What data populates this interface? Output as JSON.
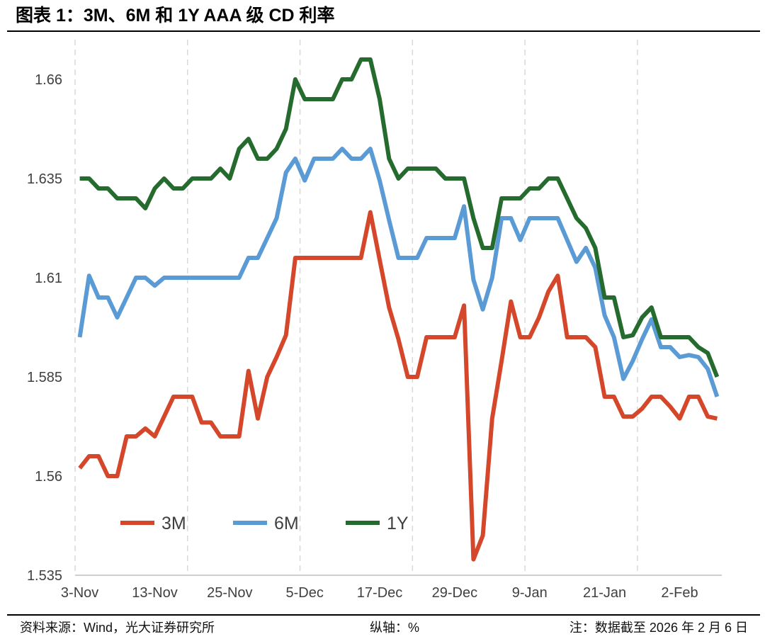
{
  "chart_data": {
    "type": "line",
    "title": "图表 1：3M、6M 和 1Y AAA 级 CD 利率",
    "ylabel": "纵轴：%",
    "source": "资料来源：Wind，光大证券研究所",
    "note": "注：数据截至 2026 年 2 月 6 日",
    "xticks": [
      "3-Nov",
      "13-Nov",
      "25-Nov",
      "5-Dec",
      "17-Dec",
      "29-Dec",
      "9-Jan",
      "21-Jan",
      "2-Feb"
    ],
    "yticks": [
      1.535,
      1.56,
      1.585,
      1.61,
      1.635,
      1.66
    ],
    "ylim": [
      1.535,
      1.67
    ],
    "grid": {
      "vertical": true,
      "horizontal": false
    },
    "legend": "bottom-left",
    "series": [
      {
        "name": "3M",
        "color": "#D4472A",
        "values": [
          1.562,
          1.565,
          1.565,
          1.56,
          1.56,
          1.57,
          1.57,
          1.572,
          1.57,
          1.575,
          1.58,
          1.58,
          1.58,
          1.5735,
          1.5735,
          1.57,
          1.57,
          1.57,
          1.5865,
          1.5745,
          1.585,
          1.59,
          1.5955,
          1.615,
          1.615,
          1.615,
          1.615,
          1.615,
          1.615,
          1.615,
          1.615,
          1.6265,
          1.6145,
          1.6025,
          1.5945,
          1.585,
          1.585,
          1.595,
          1.595,
          1.595,
          1.595,
          1.603,
          1.539,
          1.545,
          1.5745,
          1.589,
          1.604,
          1.595,
          1.595,
          1.6,
          1.6065,
          1.6105,
          1.595,
          1.595,
          1.595,
          1.5925,
          1.58,
          1.58,
          1.575,
          1.575,
          1.577,
          1.58,
          1.58,
          1.5775,
          1.5745,
          1.58,
          1.58,
          1.575,
          1.5745
        ]
      },
      {
        "name": "6M",
        "color": "#5B9BD5",
        "values": [
          1.595,
          1.6105,
          1.605,
          1.605,
          1.6,
          1.605,
          1.61,
          1.61,
          1.608,
          1.61,
          1.61,
          1.61,
          1.61,
          1.61,
          1.61,
          1.61,
          1.61,
          1.61,
          1.615,
          1.615,
          1.62,
          1.625,
          1.6365,
          1.64,
          1.6345,
          1.64,
          1.64,
          1.64,
          1.6425,
          1.64,
          1.64,
          1.6425,
          1.6345,
          1.6245,
          1.615,
          1.615,
          1.615,
          1.62,
          1.62,
          1.62,
          1.62,
          1.628,
          1.6095,
          1.602,
          1.61,
          1.625,
          1.625,
          1.6195,
          1.625,
          1.625,
          1.625,
          1.625,
          1.6195,
          1.614,
          1.6175,
          1.6125,
          1.6005,
          1.595,
          1.5845,
          1.589,
          1.5945,
          1.5995,
          1.5925,
          1.5925,
          1.59,
          1.5905,
          1.59,
          1.587,
          1.58
        ]
      },
      {
        "name": "1Y",
        "color": "#256B2E",
        "values": [
          1.635,
          1.635,
          1.6325,
          1.6325,
          1.63,
          1.63,
          1.63,
          1.6275,
          1.6325,
          1.635,
          1.6325,
          1.6325,
          1.635,
          1.635,
          1.635,
          1.6375,
          1.635,
          1.6425,
          1.645,
          1.64,
          1.64,
          1.6425,
          1.6475,
          1.66,
          1.655,
          1.655,
          1.655,
          1.655,
          1.66,
          1.66,
          1.665,
          1.665,
          1.655,
          1.64,
          1.635,
          1.6375,
          1.6375,
          1.6375,
          1.6375,
          1.635,
          1.635,
          1.635,
          1.625,
          1.6175,
          1.6175,
          1.63,
          1.63,
          1.63,
          1.6325,
          1.6325,
          1.635,
          1.635,
          1.63,
          1.625,
          1.6225,
          1.6175,
          1.605,
          1.605,
          1.595,
          1.5955,
          1.6,
          1.6025,
          1.595,
          1.595,
          1.595,
          1.595,
          1.5925,
          1.591,
          1.585
        ]
      }
    ]
  }
}
